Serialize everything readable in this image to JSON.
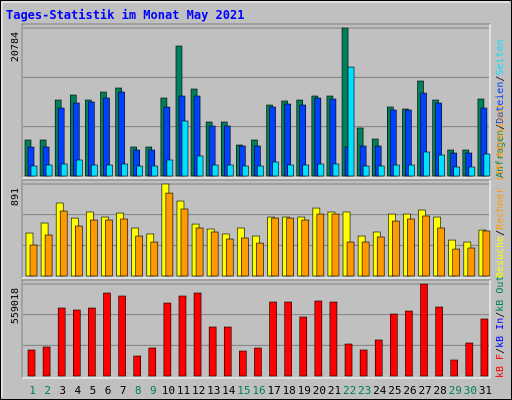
{
  "chart_data": [
    {
      "type": "bar",
      "title": "Tages-Statistik im Monat May 2021",
      "ylim": [
        0,
        20784
      ],
      "yticks": [
        20784
      ],
      "grid_divisions": 3,
      "legend_separator": "/",
      "series": [
        {
          "name": "Anfragen",
          "color": "#00805c",
          "values": [
            5055,
            5055,
            10670,
            11373,
            10670,
            11794,
            12357,
            4072,
            4072,
            10953,
            18254,
            12217,
            7583,
            7583,
            4353,
            5055,
            9970,
            10532,
            10670,
            11234,
            11234,
            20784,
            6741,
            5196,
            9690,
            9409,
            13340,
            10670,
            3651,
            3651,
            10812
          ]
        },
        {
          "name": "Dateien",
          "color": "#0040ff",
          "values": [
            4072,
            4072,
            9547,
            10249,
            10390,
            10951,
            11794,
            3650,
            3650,
            9688,
            11232,
            11232,
            7020,
            7020,
            4212,
            4212,
            9688,
            10109,
            9968,
            10951,
            10811,
            4072,
            4212,
            4212,
            9266,
            9266,
            11653,
            10249,
            3229,
            3229,
            9547
          ]
        },
        {
          "name": "Seiten",
          "color": "#00e0ff",
          "values": [
            1404,
            1544,
            1685,
            2246,
            1544,
            1544,
            1685,
            1404,
            1404,
            2246,
            7722,
            2808,
            1544,
            1544,
            1404,
            1404,
            1966,
            1544,
            1544,
            1685,
            1685,
            15304,
            1404,
            1404,
            1544,
            1544,
            3370,
            2948,
            1264,
            1264,
            3089
          ]
        }
      ]
    },
    {
      "type": "bar",
      "ylim": [
        0,
        891
      ],
      "yticks": [
        891
      ],
      "grid_divisions": 3,
      "legend_separator": "/",
      "series": [
        {
          "name": "Besuche",
          "color": "#ffff00",
          "values": [
            416,
            513,
            707,
            561,
            620,
            571,
            610,
            465,
            407,
            891,
            726,
            503,
            455,
            407,
            465,
            387,
            571,
            571,
            571,
            658,
            620,
            620,
            387,
            426,
            600,
            600,
            639,
            571,
            348,
            329,
            445
          ]
        },
        {
          "name": "Rechner (IP-Adressen)",
          "color": "#ff9900",
          "values": [
            300,
            397,
            629,
            484,
            542,
            542,
            552,
            387,
            329,
            803,
            649,
            465,
            426,
            358,
            368,
            319,
            561,
            561,
            542,
            600,
            600,
            329,
            329,
            378,
            532,
            552,
            581,
            465,
            261,
            271,
            436
          ]
        }
      ]
    },
    {
      "type": "bar",
      "ylim": [
        0,
        559018
      ],
      "yticks": [
        559018
      ],
      "grid_divisions": 3,
      "legend_separator": "/",
      "categories": [
        "1",
        "2",
        "3",
        "4",
        "5",
        "6",
        "7",
        "8",
        "9",
        "10",
        "11",
        "12",
        "13",
        "14",
        "15",
        "16",
        "17",
        "18",
        "19",
        "20",
        "21",
        "22",
        "23",
        "24",
        "25",
        "26",
        "27",
        "28",
        "29",
        "30",
        "31"
      ],
      "category_colors": [
        "#00805c",
        "#00805c",
        "#000000",
        "#000000",
        "#000000",
        "#000000",
        "#000000",
        "#00805c",
        "#00805c",
        "#000000",
        "#000000",
        "#000000",
        "#000000",
        "#000000",
        "#00805c",
        "#00805c",
        "#000000",
        "#000000",
        "#000000",
        "#000000",
        "#000000",
        "#00805c",
        "#00805c",
        "#000000",
        "#000000",
        "#000000",
        "#000000",
        "#000000",
        "#00805c",
        "#00805c",
        "#000000"
      ],
      "series": [
        {
          "name": "kB F",
          "color": "#ff0000",
          "values": [
            157976,
            176204,
            413168,
            401016,
            413168,
            504308,
            486080,
            121520,
            170128,
            443548,
            486080,
            504308,
            297724,
            297724,
            151900,
            170128,
            449624,
            449624,
            358484,
            455700,
            449624,
            194432,
            157976,
            218736,
            376712,
            394940,
            559018,
            419244,
            97216,
            200508,
            346332
          ]
        }
      ],
      "legend_extra": [
        {
          "name": "kB In",
          "color": "#0000ff"
        },
        {
          "name": "kB Out",
          "color": "#00805c"
        }
      ]
    }
  ]
}
